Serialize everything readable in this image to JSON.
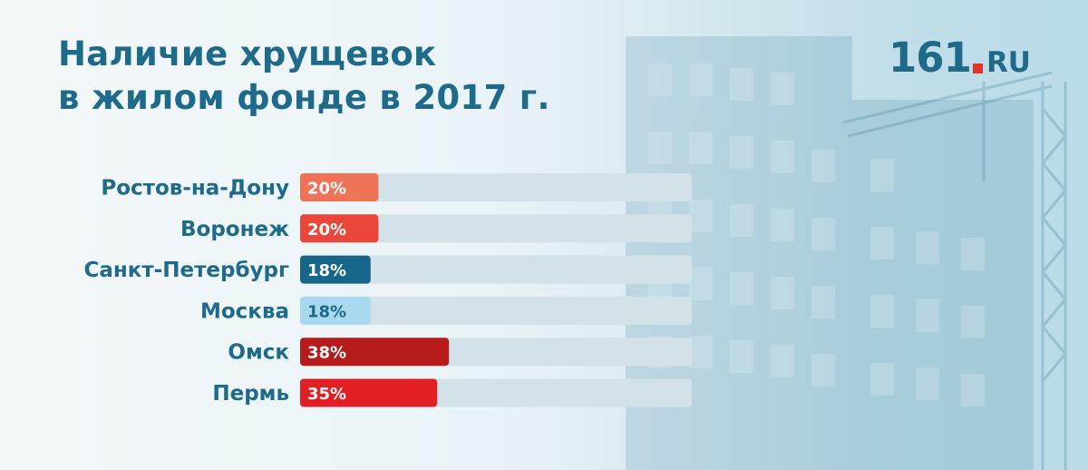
{
  "title": {
    "line1": "Наличие хрущевок",
    "line2": "в жилом фонде в 2017 г."
  },
  "logo": {
    "number": "161",
    "suffix": "RU",
    "dot_color": "#e6332a"
  },
  "chart_data": {
    "type": "bar",
    "orientation": "horizontal",
    "title": "Наличие хрущевок в жилом фонде в 2017 г.",
    "xlim": [
      0,
      100
    ],
    "unit": "%",
    "grid": false,
    "legend": "none",
    "categories": [
      "Ростов-на-Дону",
      "Воронеж",
      "Санкт-Петербург",
      "Москва",
      "Омск",
      "Пермь"
    ],
    "values": [
      20,
      20,
      18,
      18,
      38,
      35
    ],
    "labels": [
      "20%",
      "20%",
      "18%",
      "18%",
      "38%",
      "35%"
    ],
    "colors": [
      "#ee7357",
      "#e8473a",
      "#17668a",
      "#a9d9ec",
      "#b71c1c",
      "#e31f26"
    ],
    "label_colors": [
      "#ffffff",
      "#ffffff",
      "#ffffff",
      "#1d6a8a",
      "#ffffff",
      "#ffffff"
    ],
    "track_color": "#d3e2e8",
    "category_color": "#1d6a8a"
  }
}
